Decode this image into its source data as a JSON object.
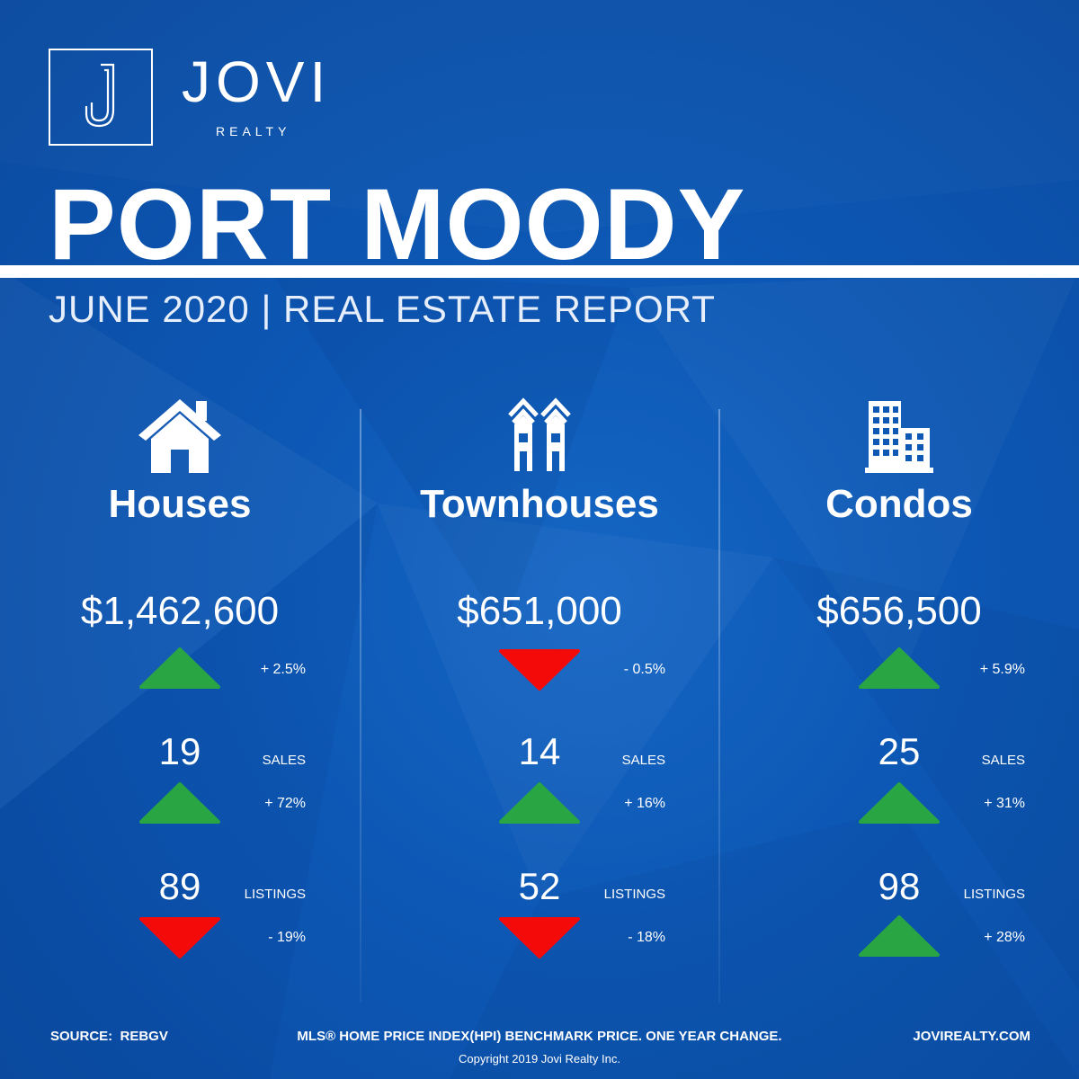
{
  "brand": {
    "name": "JOVI",
    "sub": "REALTY",
    "monogram": "J"
  },
  "title": "PORT MOODY",
  "subtitle": "JUNE 2020 | REAL ESTATE REPORT",
  "colors": {
    "background": "#0d58b5",
    "up": "#29a544",
    "down": "#f50a0a",
    "text": "#ffffff"
  },
  "columns": [
    {
      "title": "Houses",
      "icon": "house-icon",
      "price": "$1,462,600",
      "price_change": "+ 2.5%",
      "price_dir": "up",
      "sales": "19",
      "sales_label": "SALES",
      "sales_change": "+ 72%",
      "sales_dir": "up",
      "listings": "89",
      "listings_label": "LISTINGS",
      "listings_change": "- 19%",
      "listings_dir": "down"
    },
    {
      "title": "Townhouses",
      "icon": "townhouse-icon",
      "price": "$651,000",
      "price_change": "- 0.5%",
      "price_dir": "down",
      "sales": "14",
      "sales_label": "SALES",
      "sales_change": "+ 16%",
      "sales_dir": "up",
      "listings": "52",
      "listings_label": "LISTINGS",
      "listings_change": "- 18%",
      "listings_dir": "down"
    },
    {
      "title": "Condos",
      "icon": "condo-building-icon",
      "price": "$656,500",
      "price_change": "+ 5.9%",
      "price_dir": "up",
      "sales": "25",
      "sales_label": "SALES",
      "sales_change": "+ 31%",
      "sales_dir": "up",
      "listings": "98",
      "listings_label": "LISTINGS",
      "listings_change": "+ 28%",
      "listings_dir": "up"
    }
  ],
  "footer": {
    "source": "SOURCE:  REBGV",
    "note": "MLS® HOME PRICE INDEX(HPI) BENCHMARK PRICE. ONE YEAR CHANGE.",
    "url": "JOVIREALTY.COM",
    "copyright": "Copyright 2019 Jovi Realty Inc."
  }
}
